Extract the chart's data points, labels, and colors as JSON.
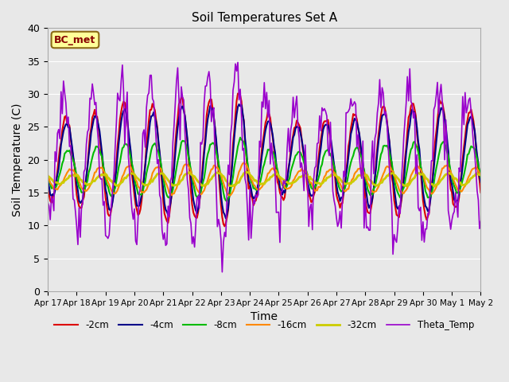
{
  "title": "Soil Temperatures Set A",
  "xlabel": "Time",
  "ylabel": "Soil Temperature (C)",
  "ylim": [
    0,
    40
  ],
  "yticks": [
    0,
    5,
    10,
    15,
    20,
    25,
    30,
    35,
    40
  ],
  "bg_color": "#e8e8e8",
  "annotation_text": "BC_met",
  "annotation_bg": "#ffff99",
  "annotation_border": "#8B6914",
  "series": [
    {
      "label": "-2cm",
      "color": "#dd0000",
      "base": 20.0,
      "amp": 7.5,
      "phase": 0.38,
      "noise": 0.3,
      "lw": 1.5
    },
    {
      "label": "-4cm",
      "color": "#000088",
      "base": 20.0,
      "amp": 6.5,
      "phase": 0.4,
      "noise": 0.2,
      "lw": 1.5
    },
    {
      "label": "-8cm",
      "color": "#00bb00",
      "base": 18.5,
      "amp": 3.5,
      "phase": 0.45,
      "noise": 0.15,
      "lw": 1.5
    },
    {
      "label": "-16cm",
      "color": "#ff8800",
      "base": 17.0,
      "amp": 1.8,
      "phase": 0.55,
      "noise": 0.1,
      "lw": 1.5
    },
    {
      "label": "-32cm",
      "color": "#cccc00",
      "base": 17.0,
      "amp": 0.8,
      "phase": 0.65,
      "noise": 0.08,
      "lw": 2.0
    },
    {
      "label": "Theta_Temp",
      "color": "#9900cc",
      "base": 20.0,
      "amp": 10.0,
      "phase": 0.3,
      "noise": 1.5,
      "lw": 1.2
    }
  ]
}
